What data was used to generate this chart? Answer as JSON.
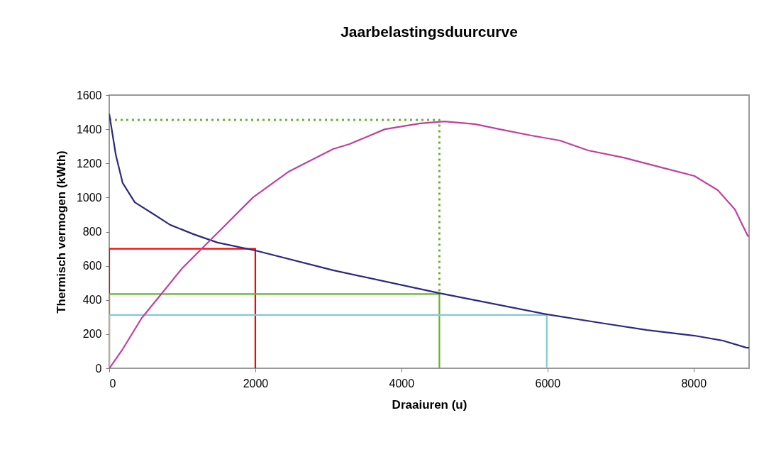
{
  "chart_data": {
    "type": "line",
    "title": "Jaarbelastingsduurcurve",
    "xlabel": "Draaiuren (u)",
    "ylabel": "Thermisch vermogen  (kWth)",
    "xlim": [
      0,
      8760
    ],
    "xticks": [
      0,
      2000,
      4000,
      6000,
      8000
    ],
    "ylim": [
      0,
      1600
    ],
    "yticks": [
      0,
      200,
      400,
      600,
      800,
      1000,
      1200,
      1400,
      1600
    ],
    "grid": false,
    "legend": false,
    "marker": "none",
    "series": [
      {
        "color": "#ff0000",
        "line_style": "solid",
        "x": [
          0,
          0,
          2000,
          2000
        ],
        "values": [
          0,
          700,
          700,
          0
        ]
      },
      {
        "color": "#66b32e",
        "line_style": "solid",
        "x": [
          0,
          0,
          4520,
          4520
        ],
        "values": [
          0,
          435,
          435,
          0
        ]
      },
      {
        "color": "#7ccbdb",
        "line_style": "solid",
        "x": [
          0,
          0,
          5990,
          5990
        ],
        "values": [
          0,
          312,
          312,
          0
        ]
      },
      {
        "color": "#66b32e",
        "line_style": "dotted",
        "x": [
          0,
          4520,
          4520
        ],
        "values": [
          1455,
          1455,
          435
        ]
      },
      {
        "color": "#2b2a7f",
        "line_style": "solid",
        "x": [
          0,
          90,
          184,
          350,
          610,
          834,
          1155,
          1484,
          2000,
          3065,
          4520,
          6000,
          6722,
          7362,
          8012,
          8400,
          8720,
          8760
        ],
        "values": [
          1490,
          1250,
          1085,
          972,
          902,
          840,
          785,
          736,
          690,
          574,
          440,
          315,
          266,
          224,
          191,
          162,
          121,
          120
        ]
      },
      {
        "color": "#c0409f",
        "line_style": "solid",
        "x": [
          0,
          30,
          184,
          446,
          708,
          999,
          1251,
          1640,
          1969,
          2454,
          3065,
          3290,
          3773,
          4258,
          4588,
          5005,
          5393,
          5781,
          6169,
          6557,
          7042,
          7527,
          8012,
          8332,
          8565,
          8740,
          8760
        ],
        "values": [
          0,
          17,
          112,
          295,
          432,
          586,
          694,
          860,
          1001,
          1151,
          1284,
          1313,
          1400,
          1434,
          1446,
          1430,
          1396,
          1363,
          1334,
          1276,
          1234,
          1180,
          1126,
          1043,
          931,
          777,
          770
        ]
      }
    ]
  }
}
